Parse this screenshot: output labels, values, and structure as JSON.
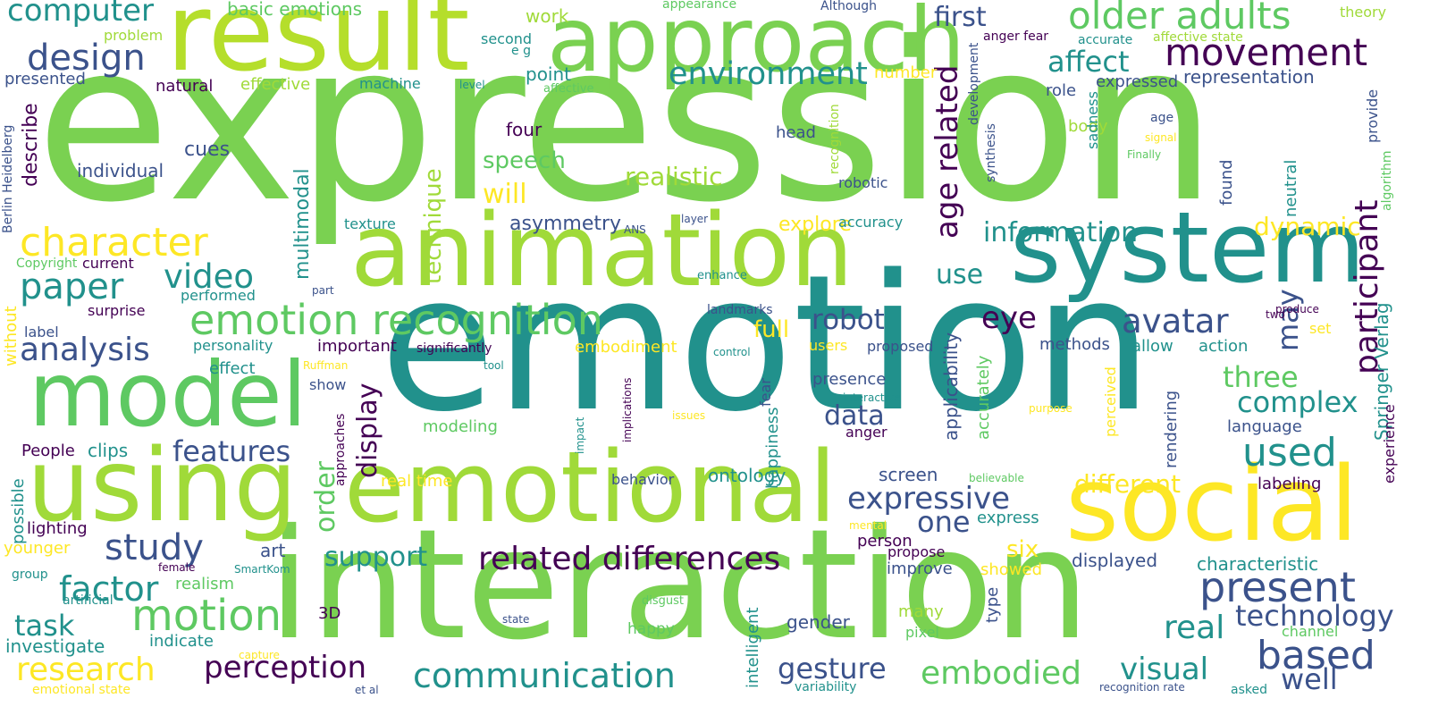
{
  "palette": {
    "dark_purple": "#440154",
    "indigo": "#3b528b",
    "teal": "#21918c",
    "green": "#5ec962",
    "yellow": "#fde725"
  },
  "words": [
    {
      "text": "expression",
      "color": "#7ad151"
    },
    {
      "text": "emotion",
      "color": "#21918c"
    },
    {
      "text": "interaction",
      "color": "#7ad151"
    },
    {
      "text": "animation",
      "color": "#a0da39"
    },
    {
      "text": "result",
      "color": "#b5de2b"
    },
    {
      "text": "approach",
      "color": "#7ad151"
    },
    {
      "text": "system",
      "color": "#21918c"
    },
    {
      "text": "social",
      "color": "#fde725"
    },
    {
      "text": "emotional",
      "color": "#a0da39"
    },
    {
      "text": "using",
      "color": "#a0da39"
    },
    {
      "text": "model",
      "color": "#5ec962"
    },
    {
      "text": "emotion recognition",
      "color": "#5ec962"
    },
    {
      "text": "computer",
      "color": "#21918c"
    },
    {
      "text": "design",
      "color": "#3b528b"
    },
    {
      "text": "character",
      "color": "#fde725"
    },
    {
      "text": "paper",
      "color": "#21918c"
    },
    {
      "text": "analysis",
      "color": "#3b528b"
    },
    {
      "text": "video",
      "color": "#21918c"
    },
    {
      "text": "older adults",
      "color": "#5ec962"
    },
    {
      "text": "movement",
      "color": "#440154"
    },
    {
      "text": "environment",
      "color": "#21918c"
    },
    {
      "text": "first",
      "color": "#3b528b"
    },
    {
      "text": "affect",
      "color": "#21918c"
    },
    {
      "text": "participant",
      "color": "#440154"
    },
    {
      "text": "age related",
      "color": "#440154"
    },
    {
      "text": "avatar",
      "color": "#3b528b"
    },
    {
      "text": "eye",
      "color": "#440154"
    },
    {
      "text": "used",
      "color": "#21918c"
    },
    {
      "text": "complex",
      "color": "#21918c"
    },
    {
      "text": "three",
      "color": "#5ec962"
    },
    {
      "text": "information",
      "color": "#21918c"
    },
    {
      "text": "related differences",
      "color": "#440154"
    },
    {
      "text": "expressive",
      "color": "#3b528b"
    },
    {
      "text": "study",
      "color": "#3b528b"
    },
    {
      "text": "support",
      "color": "#21918c"
    },
    {
      "text": "factor",
      "color": "#21918c"
    },
    {
      "text": "motion",
      "color": "#5ec962"
    },
    {
      "text": "task",
      "color": "#21918c"
    },
    {
      "text": "research",
      "color": "#fde725"
    },
    {
      "text": "perception",
      "color": "#440154"
    },
    {
      "text": "communication",
      "color": "#21918c"
    },
    {
      "text": "gesture",
      "color": "#3b528b"
    },
    {
      "text": "embodied",
      "color": "#5ec962"
    },
    {
      "text": "visual",
      "color": "#21918c"
    },
    {
      "text": "based",
      "color": "#3b528b"
    },
    {
      "text": "well",
      "color": "#3b528b"
    },
    {
      "text": "present",
      "color": "#3b528b"
    },
    {
      "text": "technology",
      "color": "#3b528b"
    },
    {
      "text": "real",
      "color": "#21918c"
    },
    {
      "text": "features",
      "color": "#3b528b"
    },
    {
      "text": "robot",
      "color": "#3b528b"
    },
    {
      "text": "data",
      "color": "#3b528b"
    },
    {
      "text": "display",
      "color": "#440154"
    },
    {
      "text": "order",
      "color": "#5ec962"
    },
    {
      "text": "one",
      "color": "#3b528b"
    },
    {
      "text": "different",
      "color": "#fde725"
    },
    {
      "text": "six",
      "color": "#fde725"
    },
    {
      "text": "speech",
      "color": "#5ec962"
    },
    {
      "text": "will",
      "color": "#fde725"
    },
    {
      "text": "realistic",
      "color": "#a0da39"
    },
    {
      "text": "technique",
      "color": "#a0da39"
    },
    {
      "text": "full",
      "color": "#fde725"
    },
    {
      "text": "may",
      "color": "#3b528b"
    },
    {
      "text": "use",
      "color": "#21918c"
    },
    {
      "text": "dynamic",
      "color": "#fde725"
    },
    {
      "text": "multimodal",
      "color": "#21918c"
    },
    {
      "text": "asymmetry",
      "color": "#3b528b"
    },
    {
      "text": "explore",
      "color": "#fde725"
    },
    {
      "text": "basic emotions",
      "color": "#5ec962"
    },
    {
      "text": "work",
      "color": "#a0da39"
    },
    {
      "text": "second",
      "color": "#21918c"
    },
    {
      "text": "e g",
      "color": "#21918c"
    },
    {
      "text": "point",
      "color": "#21918c"
    },
    {
      "text": "appearance",
      "color": "#5ec962"
    },
    {
      "text": "Although",
      "color": "#3b528b"
    },
    {
      "text": "anger fear",
      "color": "#440154"
    },
    {
      "text": "accurate",
      "color": "#21918c"
    },
    {
      "text": "affective state",
      "color": "#a0da39"
    },
    {
      "text": "theory",
      "color": "#a0da39"
    },
    {
      "text": "problem",
      "color": "#a0da39"
    },
    {
      "text": "number",
      "color": "#fde725"
    },
    {
      "text": "representation",
      "color": "#3b528b"
    },
    {
      "text": "expressed",
      "color": "#3b528b"
    },
    {
      "text": "role",
      "color": "#3b528b"
    },
    {
      "text": "development",
      "color": "#3b528b"
    },
    {
      "text": "presented",
      "color": "#3b528b"
    },
    {
      "text": "natural",
      "color": "#440154"
    },
    {
      "text": "effective",
      "color": "#a0da39"
    },
    {
      "text": "machine",
      "color": "#21918c"
    },
    {
      "text": "level",
      "color": "#21918c"
    },
    {
      "text": "affective",
      "color": "#5ec962"
    },
    {
      "text": "age",
      "color": "#3b528b"
    },
    {
      "text": "provide",
      "color": "#3b528b"
    },
    {
      "text": "body",
      "color": "#a0da39"
    },
    {
      "text": "signal",
      "color": "#fde725"
    },
    {
      "text": "Finally",
      "color": "#5ec962"
    },
    {
      "text": "algorithm",
      "color": "#5ec962"
    },
    {
      "text": "describe",
      "color": "#440154"
    },
    {
      "text": "Berlin Heidelberg",
      "color": "#3b528b"
    },
    {
      "text": "cues",
      "color": "#3b528b"
    },
    {
      "text": "individual",
      "color": "#3b528b"
    },
    {
      "text": "four",
      "color": "#440154"
    },
    {
      "text": "head",
      "color": "#3b528b"
    },
    {
      "text": "recognition",
      "color": "#a0da39"
    },
    {
      "text": "synthesis",
      "color": "#3b528b"
    },
    {
      "text": "sadness",
      "color": "#21918c"
    },
    {
      "text": "found",
      "color": "#3b528b"
    },
    {
      "text": "neutral",
      "color": "#21918c"
    },
    {
      "text": "robotic",
      "color": "#3b528b"
    },
    {
      "text": "texture",
      "color": "#21918c"
    },
    {
      "text": "layer",
      "color": "#3b528b"
    },
    {
      "text": "ANS",
      "color": "#3b528b"
    },
    {
      "text": "accuracy",
      "color": "#21918c"
    },
    {
      "text": "Copyright",
      "color": "#5ec962"
    },
    {
      "text": "current",
      "color": "#440154"
    },
    {
      "text": "performed",
      "color": "#21918c"
    },
    {
      "text": "part",
      "color": "#3b528b"
    },
    {
      "text": "enhance",
      "color": "#21918c"
    },
    {
      "text": "without",
      "color": "#fde725"
    },
    {
      "text": "surprise",
      "color": "#440154"
    },
    {
      "text": "landmarks",
      "color": "#3b528b"
    },
    {
      "text": "label",
      "color": "#3b528b"
    },
    {
      "text": "personality",
      "color": "#21918c"
    },
    {
      "text": "important",
      "color": "#440154"
    },
    {
      "text": "significantly",
      "color": "#440154"
    },
    {
      "text": "embodiment",
      "color": "#fde725"
    },
    {
      "text": "users",
      "color": "#fde725"
    },
    {
      "text": "proposed",
      "color": "#3b528b"
    },
    {
      "text": "applicability",
      "color": "#3b528b"
    },
    {
      "text": "methods",
      "color": "#3b528b"
    },
    {
      "text": "allow",
      "color": "#21918c"
    },
    {
      "text": "action",
      "color": "#21918c"
    },
    {
      "text": "produce",
      "color": "#440154"
    },
    {
      "text": "two",
      "color": "#440154"
    },
    {
      "text": "set",
      "color": "#fde725"
    },
    {
      "text": "Springer Verlag",
      "color": "#21918c"
    },
    {
      "text": "effect",
      "color": "#21918c"
    },
    {
      "text": "Ruffman",
      "color": "#fde725"
    },
    {
      "text": "tool",
      "color": "#21918c"
    },
    {
      "text": "control",
      "color": "#21918c"
    },
    {
      "text": "show",
      "color": "#3b528b"
    },
    {
      "text": "approaches",
      "color": "#440154"
    },
    {
      "text": "presence",
      "color": "#3b528b"
    },
    {
      "text": "interactive",
      "color": "#21918c"
    },
    {
      "text": "fear",
      "color": "#3b528b"
    },
    {
      "text": "happiness",
      "color": "#21918c"
    },
    {
      "text": "issues",
      "color": "#fde725"
    },
    {
      "text": "implications",
      "color": "#440154"
    },
    {
      "text": "impact",
      "color": "#21918c"
    },
    {
      "text": "purpose",
      "color": "#fde725"
    },
    {
      "text": "perceived",
      "color": "#fde725"
    },
    {
      "text": "accurately",
      "color": "#5ec962"
    },
    {
      "text": "rendering",
      "color": "#3b528b"
    },
    {
      "text": "language",
      "color": "#3b528b"
    },
    {
      "text": "anger",
      "color": "#440154"
    },
    {
      "text": "People",
      "color": "#440154"
    },
    {
      "text": "clips",
      "color": "#21918c"
    },
    {
      "text": "modeling",
      "color": "#5ec962"
    },
    {
      "text": "real time",
      "color": "#fde725"
    },
    {
      "text": "behavior",
      "color": "#3b528b"
    },
    {
      "text": "ontology",
      "color": "#21918c"
    },
    {
      "text": "believable",
      "color": "#5ec962"
    },
    {
      "text": "screen",
      "color": "#3b528b"
    },
    {
      "text": "labeling",
      "color": "#440154"
    },
    {
      "text": "experience",
      "color": "#440154"
    },
    {
      "text": "possible",
      "color": "#21918c"
    },
    {
      "text": "lighting",
      "color": "#440154"
    },
    {
      "text": "younger",
      "color": "#fde725"
    },
    {
      "text": "art",
      "color": "#3b528b"
    },
    {
      "text": "express",
      "color": "#21918c"
    },
    {
      "text": "mental",
      "color": "#fde725"
    },
    {
      "text": "person",
      "color": "#440154"
    },
    {
      "text": "propose",
      "color": "#440154"
    },
    {
      "text": "improve",
      "color": "#3b528b"
    },
    {
      "text": "showed",
      "color": "#fde725"
    },
    {
      "text": "displayed",
      "color": "#3b528b"
    },
    {
      "text": "characteristic",
      "color": "#21918c"
    },
    {
      "text": "group",
      "color": "#21918c"
    },
    {
      "text": "female",
      "color": "#440154"
    },
    {
      "text": "SmartKom",
      "color": "#21918c"
    },
    {
      "text": "realism",
      "color": "#5ec962"
    },
    {
      "text": "artificial",
      "color": "#21918c"
    },
    {
      "text": "disgust",
      "color": "#5ec962"
    },
    {
      "text": "intelligent",
      "color": "#21918c"
    },
    {
      "text": "gender",
      "color": "#3b528b"
    },
    {
      "text": "many",
      "color": "#a0da39"
    },
    {
      "text": "type",
      "color": "#3b528b"
    },
    {
      "text": "3D",
      "color": "#440154"
    },
    {
      "text": "indicate",
      "color": "#21918c"
    },
    {
      "text": "investigate",
      "color": "#21918c"
    },
    {
      "text": "happy",
      "color": "#5ec962"
    },
    {
      "text": "pixel",
      "color": "#5ec962"
    },
    {
      "text": "channel",
      "color": "#5ec962"
    },
    {
      "text": "state",
      "color": "#3b528b"
    },
    {
      "text": "capture",
      "color": "#fde725"
    },
    {
      "text": "et al",
      "color": "#3b528b"
    },
    {
      "text": "emotional state",
      "color": "#fde725"
    },
    {
      "text": "variability",
      "color": "#21918c"
    },
    {
      "text": "recognition rate",
      "color": "#3b528b"
    },
    {
      "text": "asked",
      "color": "#21918c"
    }
  ]
}
